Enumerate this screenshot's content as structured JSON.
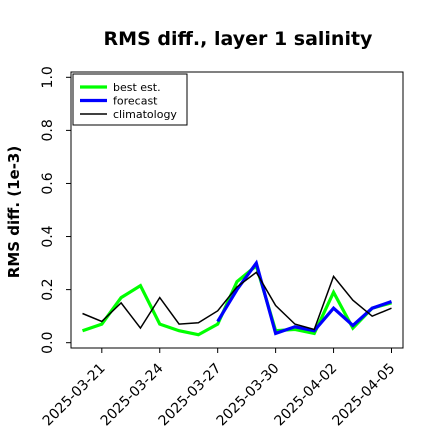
{
  "chart_data": {
    "type": "line",
    "title": "RMS diff., layer 1 salinity",
    "xlabel": "",
    "ylabel": "RMS diff. (1e-3)",
    "ylim": [
      -0.02,
      1.02
    ],
    "y_ticks": [
      "0.0",
      "0.2",
      "0.4",
      "0.6",
      "0.8",
      "1.0"
    ],
    "x": [
      "2025-03-20",
      "2025-03-21",
      "2025-03-22",
      "2025-03-23",
      "2025-03-24",
      "2025-03-25",
      "2025-03-26",
      "2025-03-27",
      "2025-03-28",
      "2025-03-29",
      "2025-03-30",
      "2025-03-31",
      "2025-04-01",
      "2025-04-02",
      "2025-04-03",
      "2025-04-04",
      "2025-04-05"
    ],
    "x_ticks": [
      "2025-03-21",
      "2025-03-24",
      "2025-03-27",
      "2025-03-30",
      "2025-04-02",
      "2025-04-05"
    ],
    "highlight_tick": "2025-03-27",
    "highlight_color": "#228b22",
    "legend_position": "top-left",
    "grid": false,
    "series": [
      {
        "name": "best est.",
        "color": "#00ff00",
        "width": 3.2,
        "values": [
          0.045,
          0.07,
          0.17,
          0.215,
          0.07,
          0.045,
          0.03,
          0.07,
          0.23,
          0.29,
          0.045,
          0.05,
          0.035,
          0.19,
          0.055,
          0.13,
          0.15
        ]
      },
      {
        "name": "forecast",
        "color": "#0000ff",
        "width": 3.2,
        "values": [
          null,
          null,
          null,
          null,
          null,
          null,
          null,
          0.08,
          0.2,
          0.3,
          0.035,
          0.06,
          0.045,
          0.13,
          0.065,
          0.13,
          0.155
        ]
      },
      {
        "name": "climatology",
        "color": "#000000",
        "width": 1.5,
        "values": [
          0.11,
          0.08,
          0.15,
          0.055,
          0.17,
          0.07,
          0.075,
          0.12,
          0.21,
          0.265,
          0.14,
          0.07,
          0.05,
          0.25,
          0.16,
          0.1,
          0.13
        ]
      }
    ]
  }
}
